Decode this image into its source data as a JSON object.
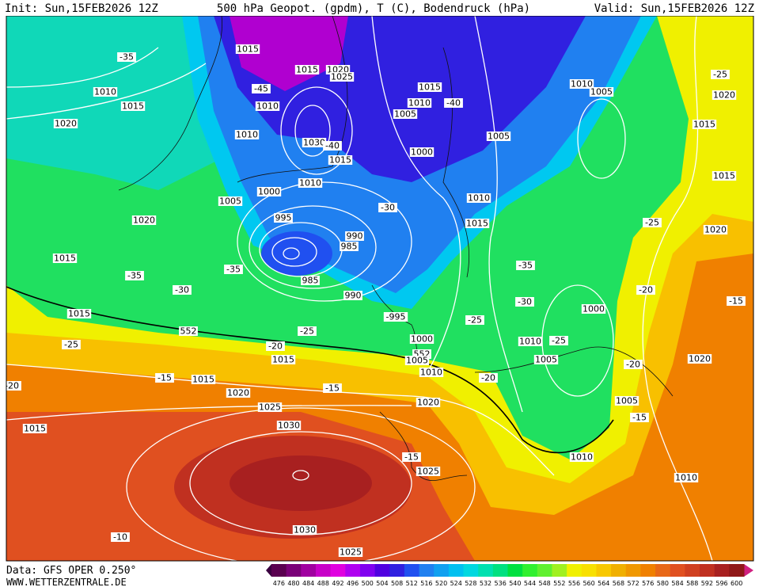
{
  "header": {
    "init": "Init: Sun,15FEB2026 12Z",
    "title": "500 hPa Geopot. (gpdm), T (C), Bodendruck (hPa)",
    "valid": "Valid: Sun,15FEB2026 12Z"
  },
  "footer": {
    "source": "Data: GFS OPER 0.250°",
    "site": "WWW.WETTERZENTRALE.DE"
  },
  "colorbar": {
    "ticks": [
      476,
      480,
      484,
      488,
      492,
      496,
      500,
      504,
      508,
      512,
      516,
      520,
      524,
      528,
      532,
      536,
      540,
      544,
      548,
      552,
      556,
      560,
      564,
      568,
      572,
      576,
      580,
      584,
      588,
      592,
      596,
      600
    ],
    "colors": [
      "#5a0050",
      "#7a0078",
      "#a000a0",
      "#c800c8",
      "#e000e0",
      "#b000f0",
      "#8000f0",
      "#5000e0",
      "#3020e0",
      "#2050f0",
      "#2080f0",
      "#10a0f0",
      "#00c0f0",
      "#00d8e0",
      "#00e0b0",
      "#00e080",
      "#00e040",
      "#30f030",
      "#60f030",
      "#a0f020",
      "#f0f000",
      "#f8e000",
      "#f8c800",
      "#f0b000",
      "#f09800",
      "#f08000",
      "#e86818",
      "#e05020",
      "#d04020",
      "#c03020",
      "#a82020",
      "#901818"
    ]
  },
  "map": {
    "labels": [
      "1010",
      "1015",
      "1020",
      "-35",
      "1015",
      "1015",
      "1020",
      "1025",
      "-45",
      "1010",
      "1015",
      "1010",
      "-40",
      "1005",
      "1010",
      "1005",
      "1020",
      "-25",
      "1015",
      "1010",
      "1030",
      "-40",
      "1015",
      "1000",
      "1005",
      "1015",
      "1000",
      "1010",
      "1005",
      "1020",
      "995",
      "-30",
      "1010",
      "1015",
      "-25",
      "1020",
      "990",
      "985",
      "1015",
      "-35",
      "-35",
      "-35",
      "985",
      "-30",
      "990",
      "-30",
      "1000",
      "-20",
      "-15",
      "1015",
      "-995",
      "-25",
      "552",
      "-25",
      "1000",
      "1010",
      "-25",
      "-25",
      "-20",
      "1015",
      "552",
      "1005",
      "1005",
      "-20",
      "1020",
      "1010",
      "-20",
      "-15",
      "1015",
      "-20",
      "-15",
      "1020",
      "1020",
      "1005",
      "-15",
      "1025",
      "1015",
      "1030",
      "-15",
      "1010",
      "1025",
      "1010",
      "1030",
      "-10",
      "1025"
    ]
  }
}
